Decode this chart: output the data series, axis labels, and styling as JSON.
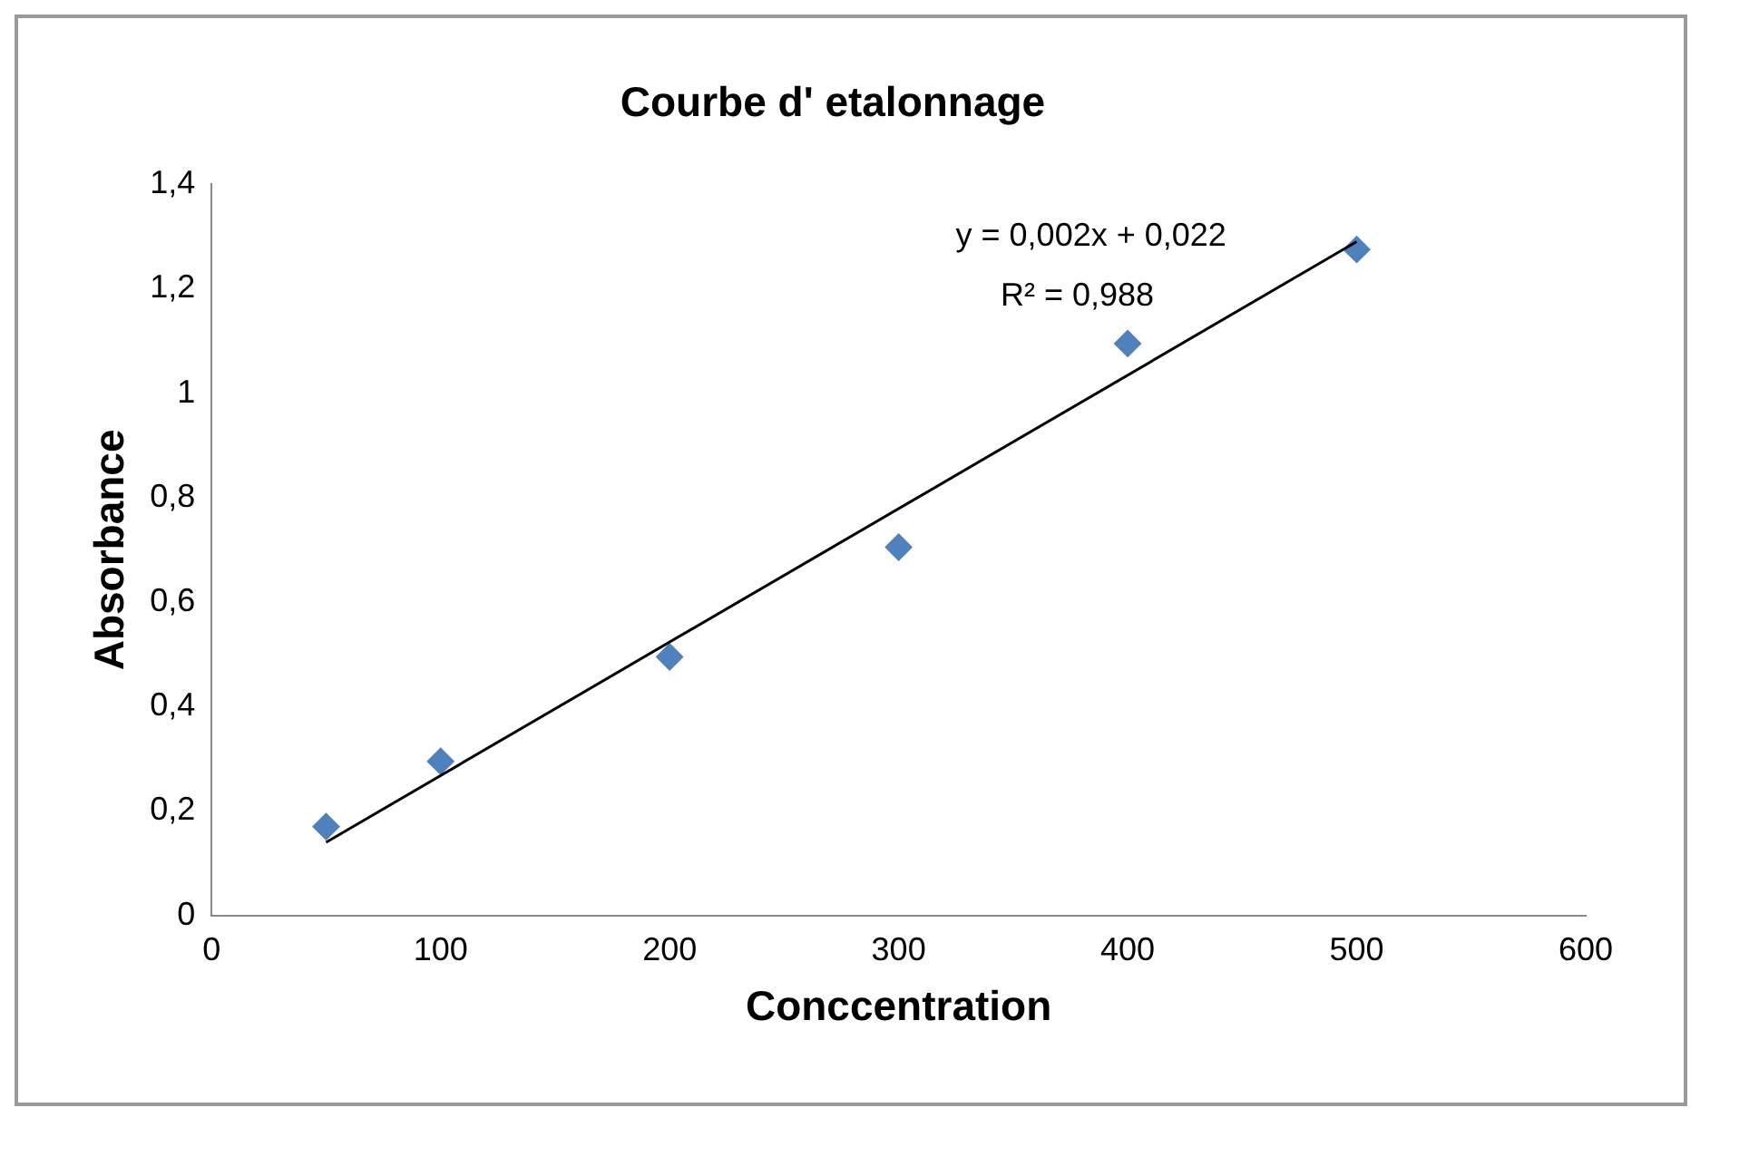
{
  "chart_data": {
    "type": "scatter",
    "title": "Courbe d' etalonnage",
    "xlabel": "Conccentration",
    "ylabel": "Absorbance",
    "x": [
      50,
      100,
      200,
      300,
      400,
      500
    ],
    "series": [
      {
        "type": "scatter",
        "color": "#4f81bd",
        "values": [
          0.17,
          0.295,
          0.495,
          0.705,
          1.095,
          1.275
        ],
        "marker": "diamond"
      },
      {
        "type": "line",
        "color": "#000000",
        "x": [
          50,
          500
        ],
        "values": [
          0.14,
          1.29
        ],
        "marker": "none",
        "line_style": "solid"
      }
    ],
    "xlim": [
      0,
      600
    ],
    "xticks": [
      0,
      100,
      200,
      300,
      400,
      500,
      600
    ],
    "ylim": [
      0,
      1.4
    ],
    "yticks": [
      0,
      {
        "value": 0.2,
        "label": "0,2"
      },
      {
        "value": 0.4,
        "label": "0,4"
      },
      {
        "value": 0.6,
        "label": "0,6"
      },
      {
        "value": 0.8,
        "label": "0,8"
      },
      1,
      {
        "value": 1.2,
        "label": "1,2"
      },
      {
        "value": 1.4,
        "label": "1,4"
      }
    ],
    "annotations": [
      "y = 0,002x + 0,022",
      "R² = 0,988"
    ],
    "grid": false,
    "legend": false
  }
}
